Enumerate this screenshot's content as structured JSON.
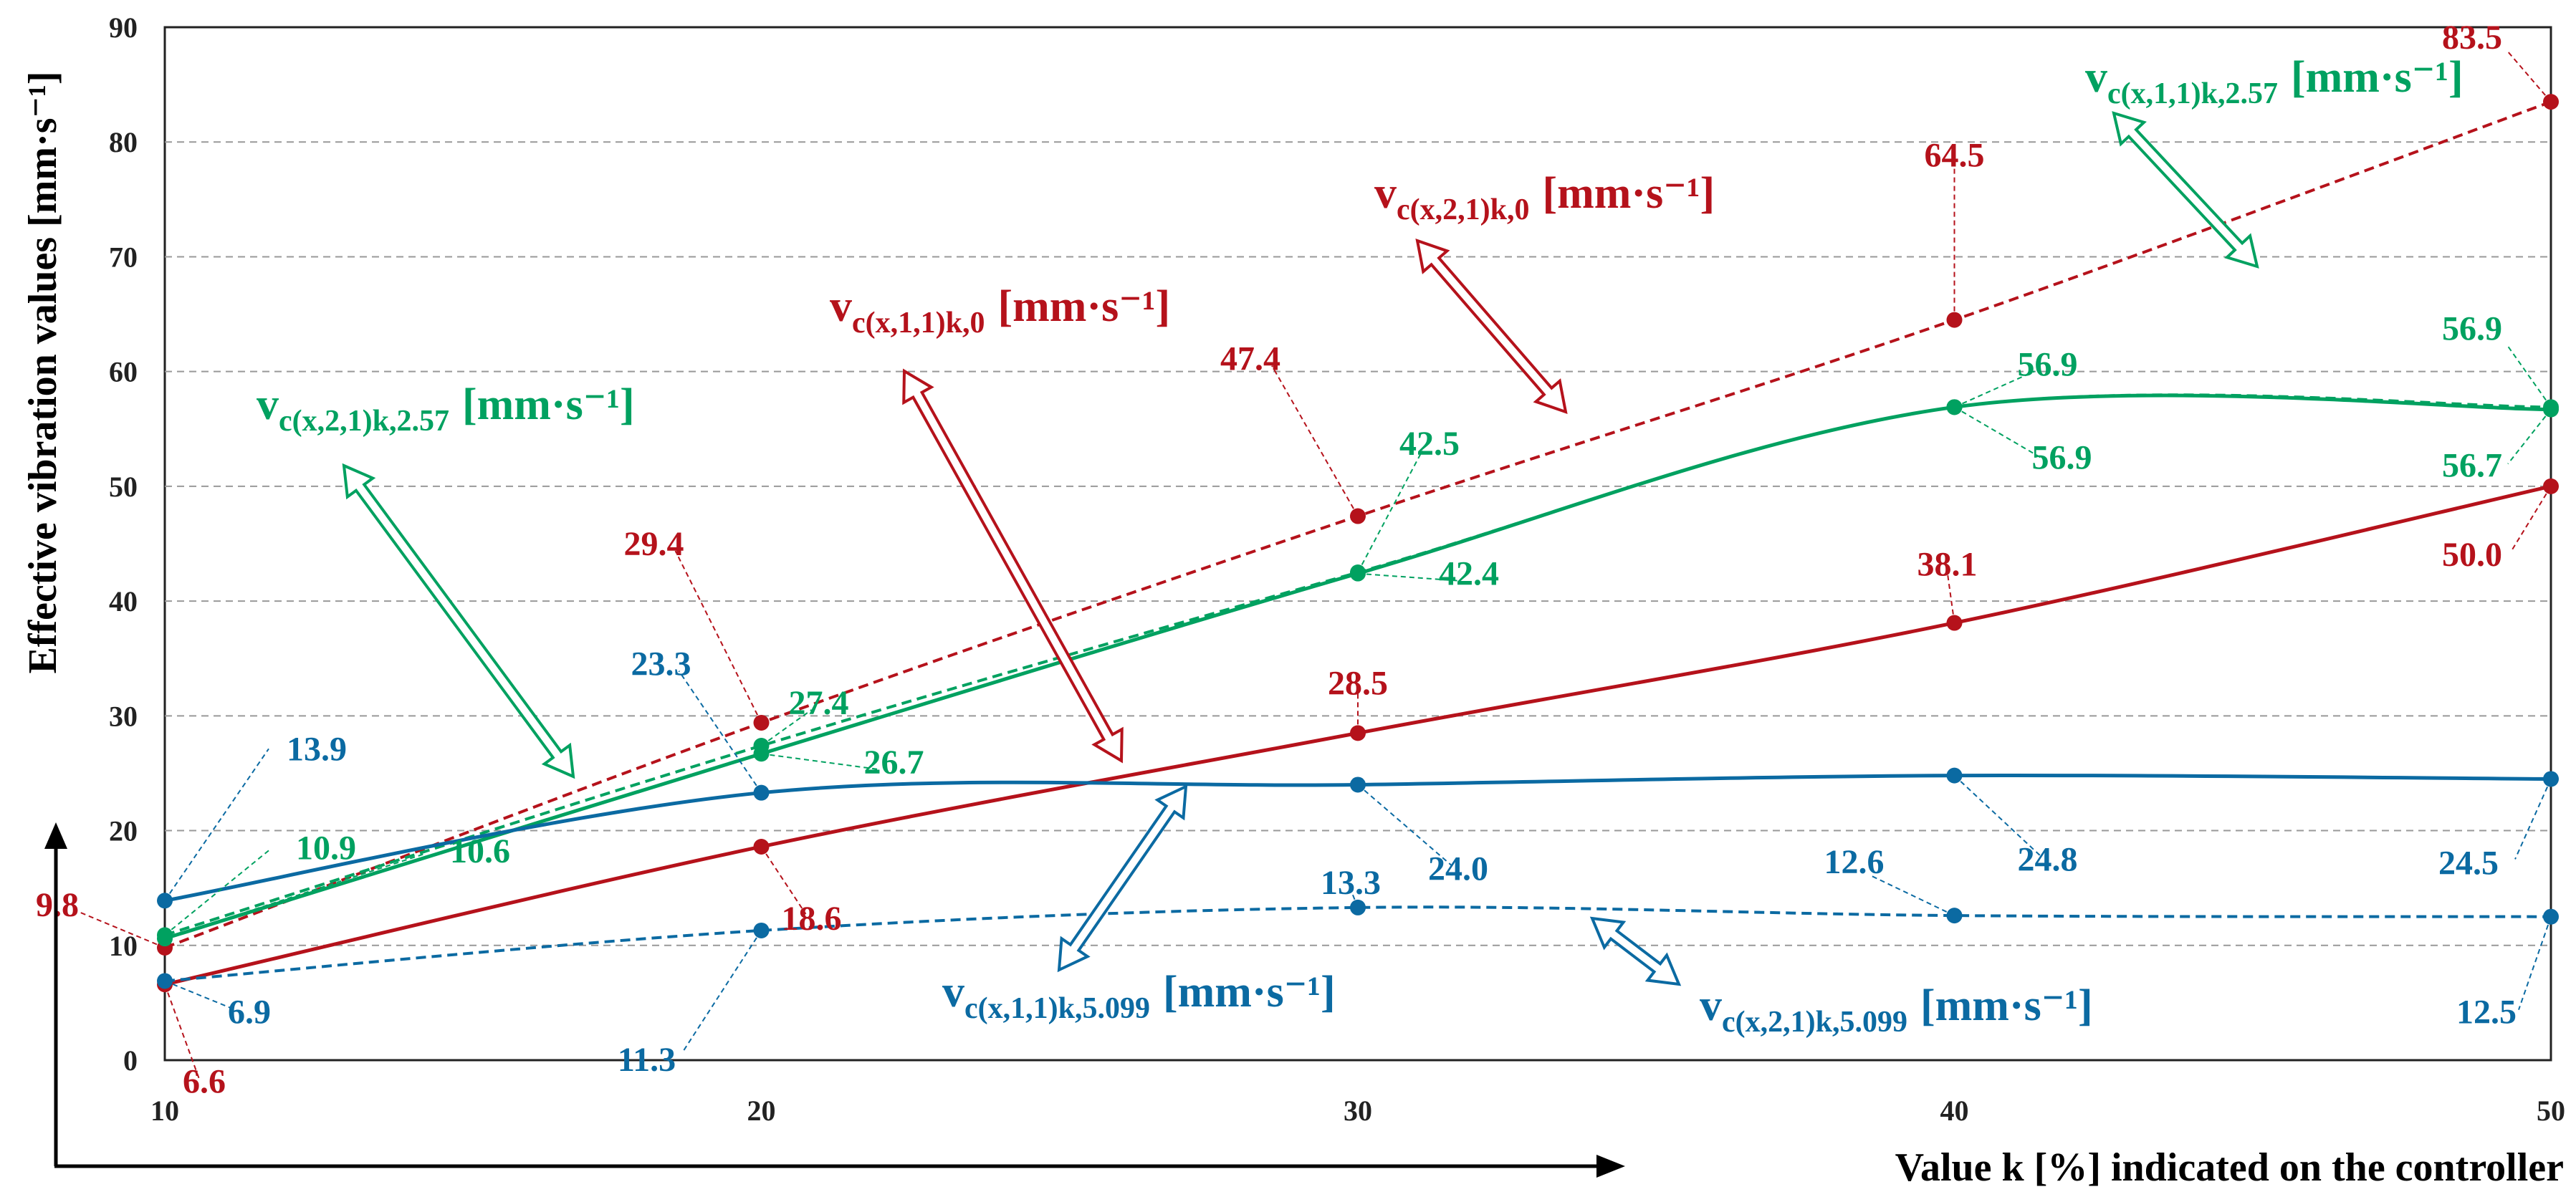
{
  "chart_data": {
    "type": "line",
    "xlabel": "Value k [%] indicated on the controller",
    "ylabel": "Effective vibration values [mm·s⁻¹]",
    "x": [
      10,
      20,
      30,
      40,
      50
    ],
    "xlim": [
      10,
      50
    ],
    "ylim": [
      0,
      90
    ],
    "xticks": [
      "10",
      "20",
      "30",
      "40",
      "50"
    ],
    "yticks": [
      "0",
      "10",
      "20",
      "30",
      "40",
      "50",
      "60",
      "70",
      "80",
      "90"
    ],
    "grid": "horizontal dashed",
    "unit": "[mm·s⁻¹]",
    "series": [
      {
        "key": "r_dash",
        "name": "vc(x,2,1)k,0",
        "base": "v",
        "subscript": "c(x,2,1)k,0",
        "color": "#b5121b",
        "dash": true,
        "values": [
          9.8,
          29.4,
          47.4,
          64.5,
          83.5
        ],
        "labels": [
          "9.8",
          "29.4",
          "47.4",
          "64.5",
          "83.5"
        ]
      },
      {
        "key": "r_solid",
        "name": "vc(x,1,1)k,0",
        "base": "v",
        "subscript": "c(x,1,1)k,0",
        "color": "#b5121b",
        "dash": false,
        "values": [
          6.6,
          18.6,
          28.5,
          38.1,
          50.0
        ],
        "labels": [
          "6.6",
          "18.6",
          "28.5",
          "38.1",
          "50.0"
        ]
      },
      {
        "key": "g_solid",
        "name": "vc(x,1,1)k,2.57",
        "base": "v",
        "subscript": "c(x,1,1)k,2.57",
        "color": "#00a160",
        "dash": false,
        "values": [
          10.6,
          26.7,
          42.4,
          56.9,
          56.7
        ],
        "labels": [
          "10.6",
          "26.7",
          "42.4",
          "56.9",
          "56.7"
        ]
      },
      {
        "key": "g_dash",
        "name": "vc(x,2,1)k,2.57",
        "base": "v",
        "subscript": "c(x,2,1)k,2.57",
        "color": "#00a160",
        "dash": true,
        "values": [
          10.9,
          27.4,
          42.5,
          56.9,
          56.9
        ],
        "labels": [
          "10.9",
          "27.4",
          "42.5",
          "56.9",
          "56.9"
        ]
      },
      {
        "key": "b_solid",
        "name": "vc(x,1,1)k,5.099",
        "base": "v",
        "subscript": "c(x,1,1)k,5.099",
        "color": "#0b6aa2",
        "dash": false,
        "values": [
          13.9,
          23.3,
          24.0,
          24.8,
          24.5
        ],
        "labels": [
          "13.9",
          "23.3",
          "24.0",
          "24.8",
          "24.5"
        ]
      },
      {
        "key": "b_dash",
        "name": "vc(x,2,1)k,5.099",
        "base": "v",
        "subscript": "c(x,2,1)k,5.099",
        "color": "#0b6aa2",
        "dash": true,
        "values": [
          6.9,
          11.3,
          13.3,
          12.6,
          12.5
        ],
        "labels": [
          "6.9",
          "11.3",
          "13.3",
          "12.6",
          "12.5"
        ]
      }
    ]
  }
}
